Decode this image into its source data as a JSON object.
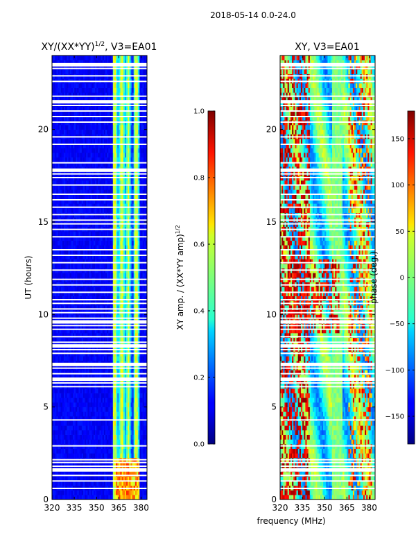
{
  "figure": {
    "suptitle": "2018-05-14 0.0-24.0",
    "xlabel": "frequency (MHz)"
  },
  "chart_data": [
    {
      "type": "heatmap",
      "title": "XY/(XX*YY)",
      "title_exp": "1/2",
      "title_tail": ", V3=EA01",
      "xlabel": "",
      "ylabel": "UT (hours)",
      "x_ticks": [
        320,
        335,
        350,
        365,
        380
      ],
      "y_ticks": [
        0,
        5,
        10,
        15,
        20
      ],
      "xlim": [
        320,
        384
      ],
      "ylim": [
        0,
        24
      ],
      "colorbar": {
        "label": "XY amp. / (XX*YY amp)",
        "label_exp": "1/2",
        "range": [
          0.0,
          1.0
        ],
        "ticks": [
          "0.0",
          "0.2",
          "0.4",
          "0.6",
          "0.8",
          "1.0"
        ],
        "tick_values": [
          0.0,
          0.2,
          0.4,
          0.6,
          0.8,
          1.0
        ],
        "colormap": "jet"
      },
      "data_description": "Normalized cross-hand amplitude, mostly ~0.05-0.15 below 360 MHz; elevated 0.3-0.6 in several channels between ~362 and ~378 MHz"
    },
    {
      "type": "heatmap",
      "title": "XY, V3=EA01",
      "xlabel": "",
      "ylabel": "",
      "x_ticks": [
        320,
        335,
        350,
        365,
        380
      ],
      "y_ticks": [
        0,
        5,
        10,
        15,
        20
      ],
      "xlim": [
        320,
        384
      ],
      "ylim": [
        0,
        24
      ],
      "colorbar": {
        "label": "phase (deg.)",
        "range": [
          -180,
          180
        ],
        "ticks": [
          "−150",
          "−100",
          "−50",
          "0",
          "50",
          "100",
          "150"
        ],
        "tick_values": [
          -150,
          -100,
          -50,
          0,
          50,
          100,
          150
        ],
        "colormap": "jet"
      },
      "data_description": "Cross-hand phase varying strongly with frequency and time, from about -180 to +180 deg"
    }
  ],
  "flagged_hours": [
    0.6,
    1.0,
    1.3,
    1.6,
    1.8,
    2.0,
    2.15,
    2.9,
    4.3,
    6.1,
    6.3,
    6.5,
    6.8,
    7.1,
    7.3,
    7.9,
    8.1,
    8.3,
    8.5,
    8.8,
    9.2,
    9.4,
    9.6,
    9.8,
    10.1,
    10.3,
    10.6,
    10.8,
    11.2,
    11.6,
    11.9,
    12.4,
    12.8,
    13.2,
    13.5,
    14.2,
    14.6,
    14.9,
    15.1,
    15.4,
    15.8,
    16.2,
    16.5,
    17.0,
    17.4,
    17.6,
    17.8,
    18.2,
    19.2,
    19.6,
    20.4,
    20.7,
    21.0,
    21.3,
    21.5,
    21.8,
    22.6,
    22.9,
    23.3,
    23.5
  ],
  "flagged_hours_thick": [
    1.6,
    6.5,
    7.3,
    8.3,
    9.6,
    17.8,
    21.5,
    23.5
  ]
}
